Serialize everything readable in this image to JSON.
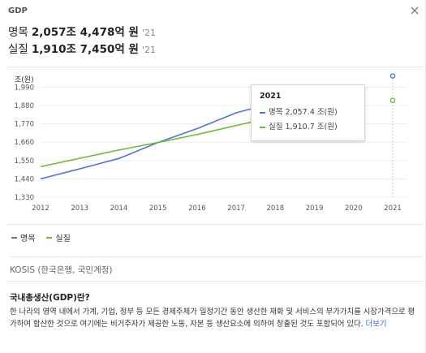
{
  "header": {
    "label": "GDP"
  },
  "stats": [
    {
      "name": "명목",
      "value": "2,057조 4,478억 원",
      "year": "'21"
    },
    {
      "name": "실질",
      "value": "1,910조 7,450억 원",
      "year": "'21"
    }
  ],
  "colors": {
    "nominal": "#4f76d0",
    "real": "#6cb83a"
  },
  "tooltip": {
    "title": "2021",
    "rows": [
      "명목 2,057.4 조(원)",
      "실질 1,910.7 조(원)"
    ]
  },
  "legend": {
    "nominal": "명목",
    "real": "실질"
  },
  "source": "KOSIS (한국은행, 국민계정)",
  "description": {
    "title": "국내총생산(GDP)란?",
    "body": "한 나라의 영역 내에서 가계, 기업, 정부 등 모든 경제주체가 일정기간 동안 생산한 재화 및 서비스의 부가가치를 시장가격으로 평가하여 합산한 것으로 여기에는 비거주자가 제공한 노동, 자본 등 생산요소에 의하여 창출된 것도 포함되어 있다.",
    "more": "더보기"
  },
  "chart_data": {
    "type": "line",
    "unit_label": "조(원)",
    "x": [
      2012,
      2013,
      2014,
      2015,
      2016,
      2017,
      2018,
      2019,
      2020,
      2021
    ],
    "x_tick_labels": [
      "2012",
      "2013",
      "2014",
      "2015",
      "2016",
      "2017",
      "2018",
      "2019",
      "2020",
      "2021"
    ],
    "y_ticks": [
      1330,
      1440,
      1550,
      1660,
      1770,
      1880,
      1990
    ],
    "y_tick_labels": [
      "1,330",
      "1,440",
      "1,550",
      "1,660",
      "1,770",
      "1,880",
      "1,990"
    ],
    "ylim": [
      1330,
      2060
    ],
    "series": [
      {
        "name": "명목",
        "key": "nominal",
        "values": [
          1440,
          1500,
          1562,
          1658,
          1741,
          1836,
          1898,
          1924,
          1940,
          2057.4
        ]
      },
      {
        "name": "실질",
        "key": "real",
        "values": [
          1513,
          1563,
          1613,
          1658,
          1706,
          1760,
          1812,
          1853,
          1840,
          1910.7
        ]
      }
    ],
    "grid": true,
    "legend_position": "bottom-left"
  }
}
